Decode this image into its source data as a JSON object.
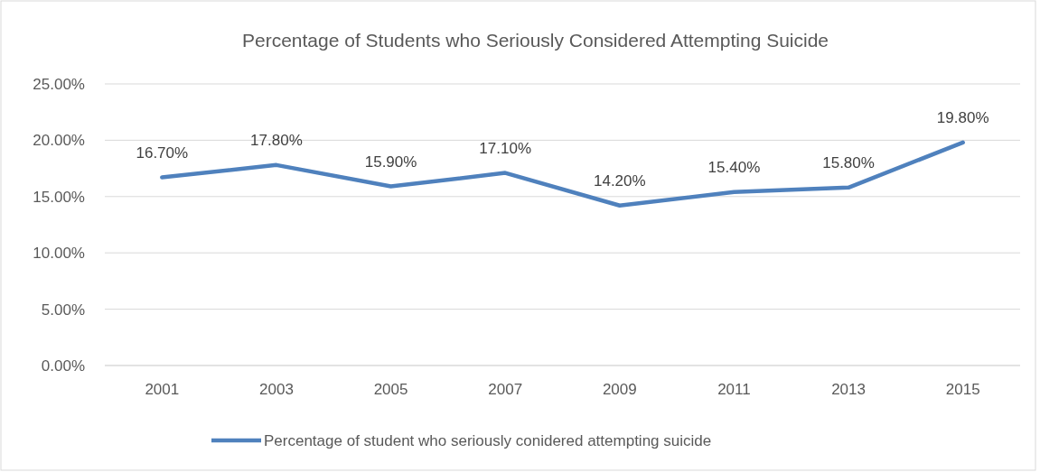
{
  "chart_data": {
    "type": "line",
    "title": "Percentage of Students who Seriously Considered Attempting Suicide",
    "categories": [
      "2001",
      "2003",
      "2005",
      "2007",
      "2009",
      "2011",
      "2013",
      "2015"
    ],
    "series": [
      {
        "name": "Percentage of student who seriously conidered attempting suicide",
        "color": "#4f81bd",
        "values": [
          16.7,
          17.8,
          15.9,
          17.1,
          14.2,
          15.4,
          15.8,
          19.8
        ],
        "value_labels": [
          "16.70%",
          "17.80%",
          "15.90%",
          "17.10%",
          "14.20%",
          "15.40%",
          "15.80%",
          "19.80%"
        ]
      }
    ],
    "ylim": [
      0,
      25
    ],
    "yticks": [
      {
        "value": 0,
        "label": "0.00%"
      },
      {
        "value": 5,
        "label": "5.00%"
      },
      {
        "value": 10,
        "label": "10.00%"
      },
      {
        "value": 15,
        "label": "15.00%"
      },
      {
        "value": 20,
        "label": "20.00%"
      },
      {
        "value": 25,
        "label": "25.00%"
      }
    ],
    "grid": "y",
    "legend": "bottom",
    "marker": "none",
    "line_style": "solid"
  }
}
